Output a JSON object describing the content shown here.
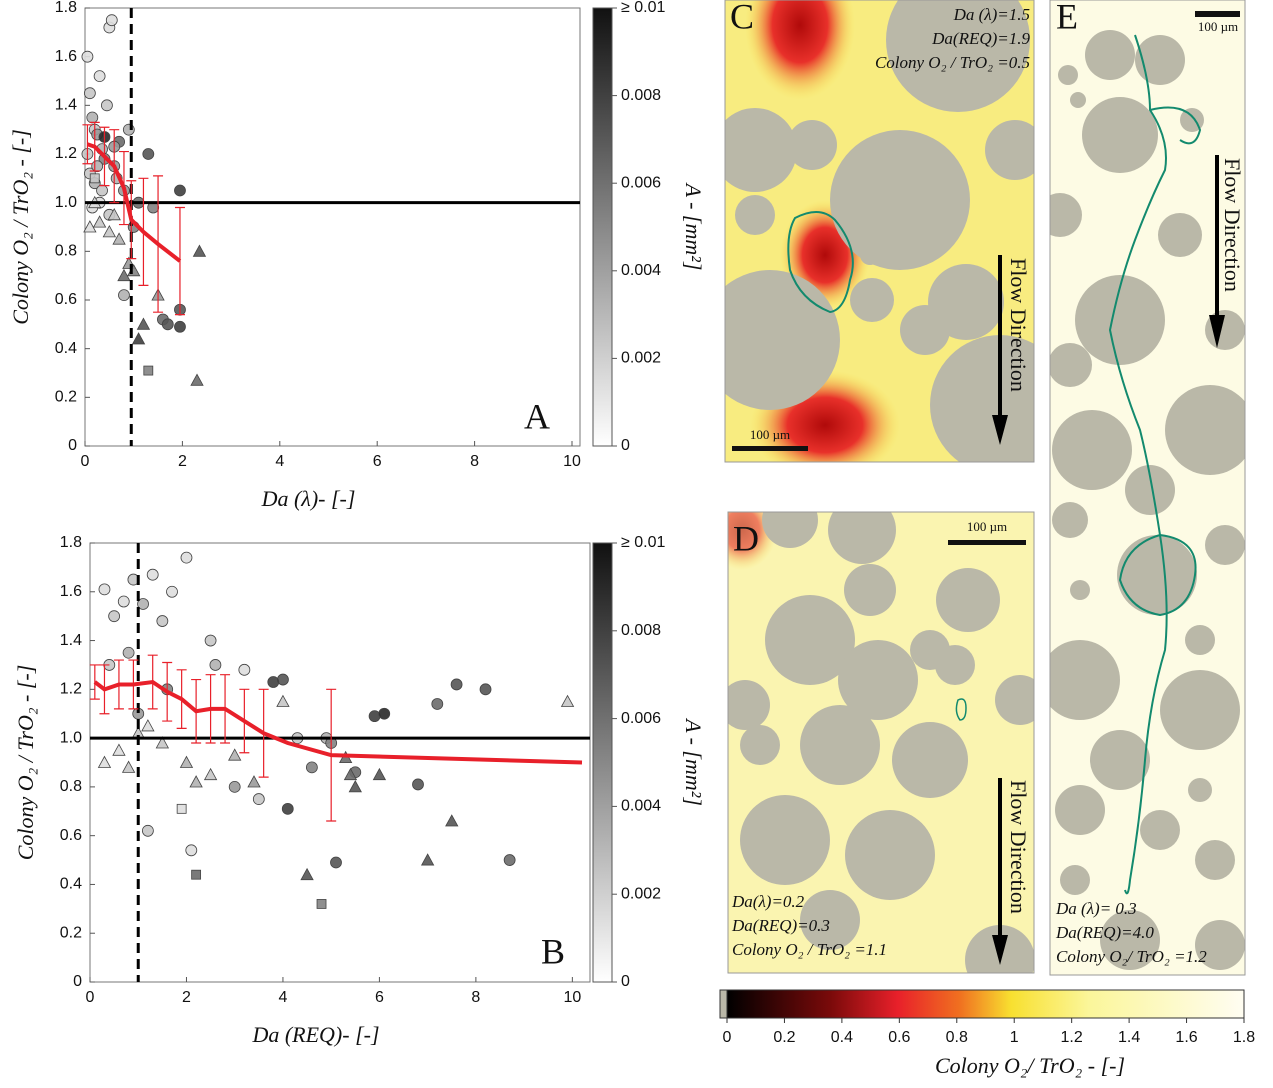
{
  "chart_data": [
    {
      "type": "scatter",
      "panel_label": "A",
      "xlabel": "Da (λ)- [-]",
      "ylabel": "Colony O₂ / TrO₂ - [-]",
      "xlim": [
        0,
        10
      ],
      "ylim": [
        0,
        1.8
      ],
      "xticks": [
        0,
        2,
        4,
        6,
        8,
        10
      ],
      "yticks": [
        0,
        0.2,
        0.4,
        0.6,
        0.8,
        {
          "value": 1,
          "label": "1.0"
        },
        1.2,
        1.4,
        1.6,
        1.8
      ],
      "hline": 1,
      "vline": 0.95,
      "groups": [
        {
          "marker": "circle",
          "x": [
            0.05,
            0.1,
            0.15,
            0.2,
            0.25,
            0.3,
            0.35,
            0.4,
            0.45,
            0.5,
            0.55,
            0.6,
            0.65,
            0.7,
            0.8,
            0.9,
            0.1,
            0.2,
            0.3,
            0.5,
            1.1,
            1.3,
            1.4,
            1.6,
            1.7,
            1.95,
            1.95,
            1.95,
            0.8,
            1.0,
            0.4,
            0.6,
            0.05,
            0.25,
            0.15,
            0.35
          ],
          "y": [
            1.6,
            1.45,
            1.35,
            1.3,
            1.28,
            1.52,
            1.22,
            1.18,
            1.4,
            1.72,
            1.75,
            1.15,
            1.1,
            1.25,
            1.05,
            1.3,
            1.12,
            1.08,
            1.0,
            0.95,
            1.0,
            1.2,
            0.98,
            0.52,
            0.5,
            0.56,
            0.49,
            1.05,
            0.62,
            0.9,
            1.27,
            1.23,
            1.2,
            1.15,
            0.98,
            1.05
          ],
          "a": [
            0.001,
            0.002,
            0.003,
            0.002,
            0.004,
            0.001,
            0.003,
            0.005,
            0.002,
            0.001,
            0.001,
            0.004,
            0.003,
            0.006,
            0.004,
            0.003,
            0.002,
            0.003,
            0.001,
            0.002,
            0.006,
            0.007,
            0.005,
            0.006,
            0.007,
            0.007,
            0.008,
            0.008,
            0.003,
            0.005,
            0.009,
            0.004,
            0.002,
            0.003,
            0.001,
            0.002
          ]
        },
        {
          "marker": "triangle",
          "x": [
            0.1,
            0.3,
            0.5,
            0.7,
            0.9,
            1.0,
            1.2,
            1.5,
            2.35,
            2.3,
            0.8,
            1.1,
            0.2,
            0.6
          ],
          "y": [
            0.9,
            0.92,
            0.88,
            0.85,
            0.75,
            0.72,
            0.5,
            0.62,
            0.8,
            0.27,
            0.7,
            0.44,
            1.0,
            0.95
          ],
          "a": [
            0.001,
            0.002,
            0.002,
            0.003,
            0.004,
            0.005,
            0.007,
            0.004,
            0.007,
            0.006,
            0.006,
            0.008,
            0.001,
            0.002
          ]
        },
        {
          "marker": "square",
          "x": [
            1.3,
            0.2
          ],
          "y": [
            0.31,
            1.1
          ],
          "a": [
            0.005,
            0.002
          ]
        }
      ],
      "mean": {
        "color": "#e8202a",
        "x": [
          0.05,
          0.2,
          0.4,
          0.6,
          0.8,
          0.95,
          1.2,
          1.5,
          1.95
        ],
        "y": [
          1.24,
          1.23,
          1.19,
          1.15,
          1.06,
          0.93,
          0.88,
          0.83,
          0.76
        ],
        "err": [
          0.08,
          0.1,
          0.12,
          0.15,
          0.15,
          0.16,
          0.22,
          0.28,
          0.22
        ]
      },
      "colorbar": {
        "label": "A - [mm²]",
        "lim": [
          0,
          0.01
        ],
        "ticks": [
          0,
          0.002,
          0.004,
          0.006,
          0.008,
          {
            "value": 0.01,
            "label": "≥ 0.01"
          }
        ]
      }
    },
    {
      "type": "scatter",
      "panel_label": "B",
      "xlabel": "Da (REQ)- [-]",
      "ylabel": "Colony O₂ / TrO₂ - [-]",
      "xlim": [
        0,
        10.2
      ],
      "ylim": [
        0,
        1.8
      ],
      "xticks": [
        0,
        2,
        4,
        6,
        8,
        10
      ],
      "yticks": [
        0,
        0.2,
        0.4,
        0.6,
        0.8,
        {
          "value": 1,
          "label": "1.0"
        },
        1.2,
        1.4,
        1.6,
        1.8
      ],
      "hline": 1,
      "vline": 1,
      "groups": [
        {
          "marker": "circle",
          "x": [
            0.3,
            0.5,
            0.7,
            0.9,
            1.1,
            1.3,
            1.5,
            1.7,
            2.0,
            2.5,
            2.6,
            3.2,
            3.5,
            4.0,
            4.1,
            4.3,
            4.6,
            4.9,
            5.0,
            5.1,
            5.5,
            5.9,
            6.1,
            6.8,
            7.2,
            7.6,
            8.2,
            8.7,
            1.2,
            2.1,
            0.4,
            0.8,
            1.0,
            1.6,
            3.0,
            3.8
          ],
          "y": [
            1.61,
            1.5,
            1.56,
            1.65,
            1.55,
            1.67,
            1.48,
            1.6,
            1.74,
            1.4,
            1.3,
            1.28,
            0.75,
            1.24,
            0.71,
            1.0,
            0.88,
            1.0,
            0.98,
            0.49,
            0.86,
            1.09,
            1.1,
            0.81,
            1.14,
            1.22,
            1.2,
            0.5,
            0.62,
            0.54,
            1.3,
            1.35,
            1.1,
            1.2,
            0.8,
            1.23
          ],
          "a": [
            0.001,
            0.002,
            0.001,
            0.002,
            0.003,
            0.001,
            0.002,
            0.001,
            0.001,
            0.002,
            0.003,
            0.001,
            0.002,
            0.007,
            0.008,
            0.002,
            0.005,
            0.003,
            0.005,
            0.007,
            0.006,
            0.008,
            0.009,
            0.007,
            0.006,
            0.007,
            0.007,
            0.006,
            0.002,
            0.001,
            0.002,
            0.003,
            0.004,
            0.005,
            0.004,
            0.008
          ]
        },
        {
          "marker": "triangle",
          "x": [
            0.3,
            0.6,
            1.0,
            1.5,
            2.0,
            2.5,
            3.0,
            3.4,
            4.0,
            4.5,
            5.3,
            5.4,
            5.5,
            6.0,
            7.0,
            7.5,
            9.9,
            1.2,
            0.8,
            2.2
          ],
          "y": [
            0.9,
            0.95,
            1.02,
            0.98,
            0.9,
            0.85,
            0.93,
            0.82,
            1.15,
            0.44,
            0.92,
            0.85,
            0.8,
            0.85,
            0.5,
            0.66,
            1.15,
            1.05,
            0.88,
            0.82
          ],
          "a": [
            0.001,
            0.001,
            0.002,
            0.002,
            0.003,
            0.002,
            0.003,
            0.004,
            0.002,
            0.007,
            0.006,
            0.006,
            0.007,
            0.007,
            0.007,
            0.007,
            0.002,
            0.001,
            0.002,
            0.003
          ]
        },
        {
          "marker": "square",
          "x": [
            2.2,
            1.9,
            4.8
          ],
          "y": [
            0.44,
            0.71,
            0.32
          ],
          "a": [
            0.006,
            0.001,
            0.005
          ]
        }
      ],
      "mean": {
        "color": "#e8202a",
        "x": [
          0.1,
          0.3,
          0.6,
          0.9,
          1.3,
          1.6,
          1.9,
          2.2,
          2.5,
          2.8,
          3.2,
          3.6,
          4.1,
          5.0,
          10.2
        ],
        "y": [
          1.23,
          1.2,
          1.22,
          1.22,
          1.23,
          1.19,
          1.16,
          1.11,
          1.12,
          1.12,
          1.07,
          1.02,
          0.98,
          0.93,
          0.9
        ],
        "err": [
          0.07,
          0.1,
          0.1,
          0.1,
          0.11,
          0.12,
          0.12,
          0.13,
          0.14,
          0.14,
          0.13,
          0.18,
          null,
          0.27,
          null
        ]
      },
      "colorbar": {
        "label": "A - [mm²]",
        "lim": [
          0,
          0.01
        ],
        "ticks": [
          0,
          0.002,
          0.004,
          0.006,
          0.008,
          {
            "value": 0.01,
            "label": "≥ 0.01"
          }
        ]
      }
    }
  ],
  "image_panels": [
    {
      "label": "C",
      "annotations": [
        "Da (λ)=1.5",
        "Da(REQ)=1.9",
        "Colony O₂ / TrO₂ =0.5"
      ],
      "scale_bar": "100 µm",
      "flow": "Flow Direction"
    },
    {
      "label": "D",
      "annotations": [
        "Da(λ)=0.2",
        "Da(REQ)=0.3",
        "Colony O₂ / TrO₂ =1.1"
      ],
      "scale_bar": "100 µm",
      "flow": "Flow Direction"
    },
    {
      "label": "E",
      "annotations": [
        "Da (λ)= 0.3",
        "Da(REQ)=4.0",
        "Colony O₂/ TrO₂ =1.2"
      ],
      "scale_bar": "100 µm",
      "flow": "Flow Direction"
    }
  ],
  "colorbar": {
    "label": "Colony O₂/ TrO₂ - [-]",
    "lim": [
      0,
      1.8
    ],
    "ticks": [
      0,
      0.2,
      0.4,
      0.6,
      0.8,
      1,
      1.2,
      1.4,
      1.6,
      1.8
    ]
  }
}
